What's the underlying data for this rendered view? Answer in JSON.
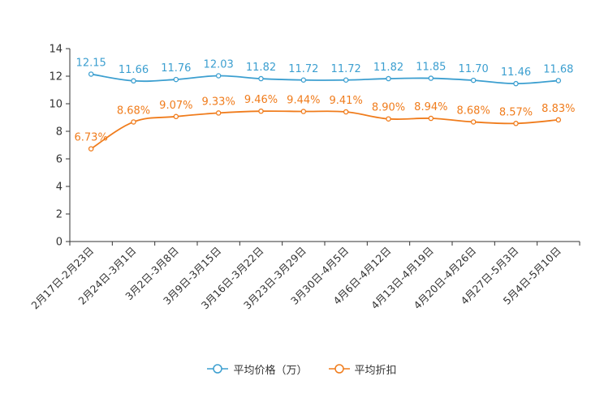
{
  "chart_data": {
    "type": "line",
    "categories": [
      "2月17日-2月23日",
      "2月24日-3月1日",
      "3月2日-3月8日",
      "3月9日-3月15日",
      "3月16日-3月22日",
      "3月23日-3月29日",
      "3月30日-4月5日",
      "4月6日-4月12日",
      "4月13日-4月19日",
      "4月20日-4月26日",
      "4月27日-5月3日",
      "5月4日-5月10日"
    ],
    "series": [
      {
        "name": "平均价格（万）",
        "color": "#3c9fd0",
        "values": [
          12.15,
          11.66,
          11.76,
          12.03,
          11.82,
          11.72,
          11.72,
          11.82,
          11.85,
          11.7,
          11.46,
          11.68
        ],
        "labels": [
          "12.15",
          "11.66",
          "11.76",
          "12.03",
          "11.82",
          "11.72",
          "11.72",
          "11.82",
          "11.85",
          "11.70",
          "11.46",
          "11.68"
        ]
      },
      {
        "name": "平均折扣",
        "color": "#f07c1c",
        "values": [
          6.73,
          8.68,
          9.07,
          9.33,
          9.46,
          9.44,
          9.41,
          8.9,
          8.94,
          8.68,
          8.57,
          8.83
        ],
        "labels": [
          "6.73%",
          "8.68%",
          "9.07%",
          "9.33%",
          "9.46%",
          "9.44%",
          "9.41%",
          "8.90%",
          "8.94%",
          "8.68%",
          "8.57%",
          "8.83%"
        ]
      }
    ],
    "ylim": [
      0,
      14
    ],
    "yticks": [
      0,
      2,
      4,
      6,
      8,
      10,
      12,
      14
    ],
    "ytick_labels": [
      "0",
      "2",
      "4",
      "6",
      "8",
      "10",
      "12",
      "14"
    ],
    "title": "",
    "xlabel": "",
    "ylabel": "",
    "grid": false,
    "legend_position": "bottom-center"
  }
}
